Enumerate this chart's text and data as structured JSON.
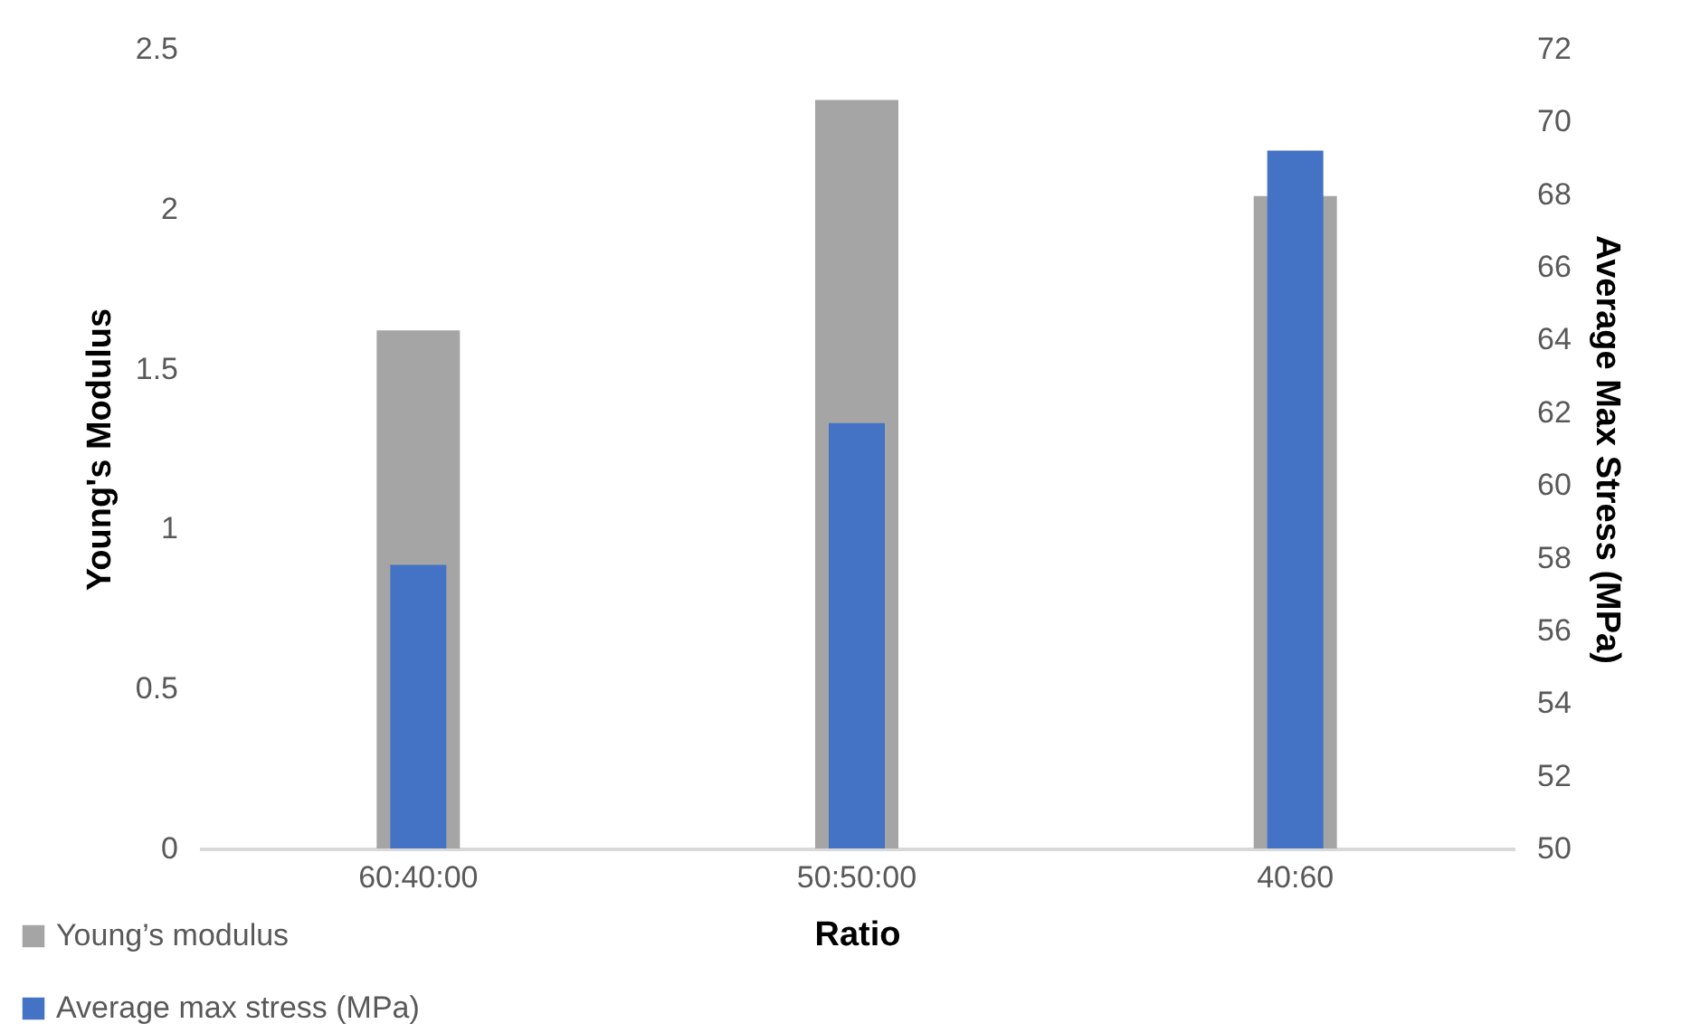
{
  "chart_data": {
    "type": "bar",
    "xlabel": "Ratio",
    "ylabel": "Young's Modulus",
    "y2label": "Average Max Stress (MPa)",
    "categories": [
      "60:40:00",
      "50:50:00",
      "40:60"
    ],
    "series": [
      {
        "name": "Young’s modulus",
        "color": "#a5a5a5",
        "values": [
          1.62,
          2.34,
          2.04
        ]
      },
      {
        "name": "Average max stress (MPa)",
        "color": "#4472c4",
        "values": [
          57.8,
          61.7,
          69.2
        ],
        "axis": "y2"
      }
    ],
    "ylim": [
      0,
      2.5
    ],
    "yticks": [
      0,
      0.5,
      1,
      1.5,
      2,
      2.5
    ],
    "y2lim": [
      50,
      72
    ],
    "y2ticks": [
      50,
      52,
      54,
      56,
      58,
      60,
      62,
      64,
      66,
      68,
      70,
      72
    ],
    "grid": false,
    "legend": "bottom left"
  }
}
